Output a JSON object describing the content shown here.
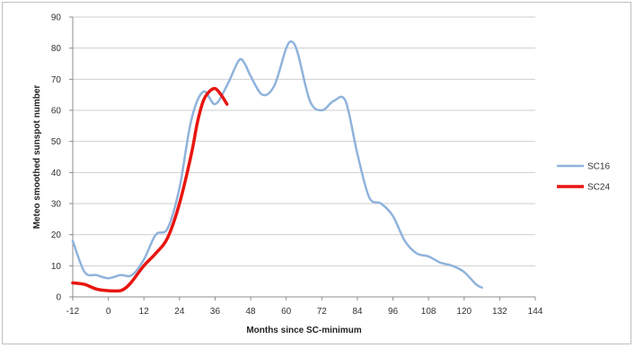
{
  "chart_data": {
    "type": "line",
    "title": "",
    "xlabel": "Months since SC-minimum",
    "ylabel": "Meteo smoothed sunspot number",
    "xlim": [
      -12,
      144
    ],
    "ylim": [
      0,
      90
    ],
    "x_ticks": [
      -12,
      0,
      12,
      24,
      36,
      48,
      60,
      72,
      84,
      96,
      108,
      120,
      132,
      144
    ],
    "y_ticks": [
      0,
      10,
      20,
      30,
      40,
      50,
      60,
      70,
      80,
      90
    ],
    "grid": "horizontal",
    "legend_position": "right",
    "series": [
      {
        "name": "SC16",
        "color": "#8fb3dc",
        "points": [
          [
            -12,
            18
          ],
          [
            -8,
            8
          ],
          [
            -4,
            7
          ],
          [
            0,
            6
          ],
          [
            4,
            7
          ],
          [
            8,
            7
          ],
          [
            12,
            12
          ],
          [
            16,
            20
          ],
          [
            20,
            22
          ],
          [
            24,
            35
          ],
          [
            28,
            57
          ],
          [
            32,
            66
          ],
          [
            36,
            62
          ],
          [
            40,
            68
          ],
          [
            44,
            76
          ],
          [
            46,
            75
          ],
          [
            48,
            71
          ],
          [
            52,
            65
          ],
          [
            56,
            68
          ],
          [
            60,
            80
          ],
          [
            62,
            82
          ],
          [
            64,
            78
          ],
          [
            68,
            63
          ],
          [
            72,
            60
          ],
          [
            76,
            63
          ],
          [
            80,
            63
          ],
          [
            84,
            46
          ],
          [
            88,
            32
          ],
          [
            92,
            30
          ],
          [
            96,
            26
          ],
          [
            100,
            18
          ],
          [
            104,
            14
          ],
          [
            108,
            13
          ],
          [
            112,
            11
          ],
          [
            116,
            10
          ],
          [
            120,
            8
          ],
          [
            124,
            4
          ],
          [
            126,
            3
          ]
        ]
      },
      {
        "name": "SC24",
        "color": "#e8150f",
        "points": [
          [
            -12,
            4.5
          ],
          [
            -8,
            4
          ],
          [
            -4,
            2.5
          ],
          [
            0,
            2
          ],
          [
            4,
            2
          ],
          [
            6,
            3
          ],
          [
            8,
            5
          ],
          [
            12,
            10
          ],
          [
            16,
            14
          ],
          [
            20,
            19
          ],
          [
            24,
            30
          ],
          [
            28,
            46
          ],
          [
            30,
            56
          ],
          [
            32,
            63
          ],
          [
            34,
            66
          ],
          [
            36,
            67
          ],
          [
            38,
            65
          ],
          [
            40,
            62
          ]
        ]
      }
    ]
  }
}
